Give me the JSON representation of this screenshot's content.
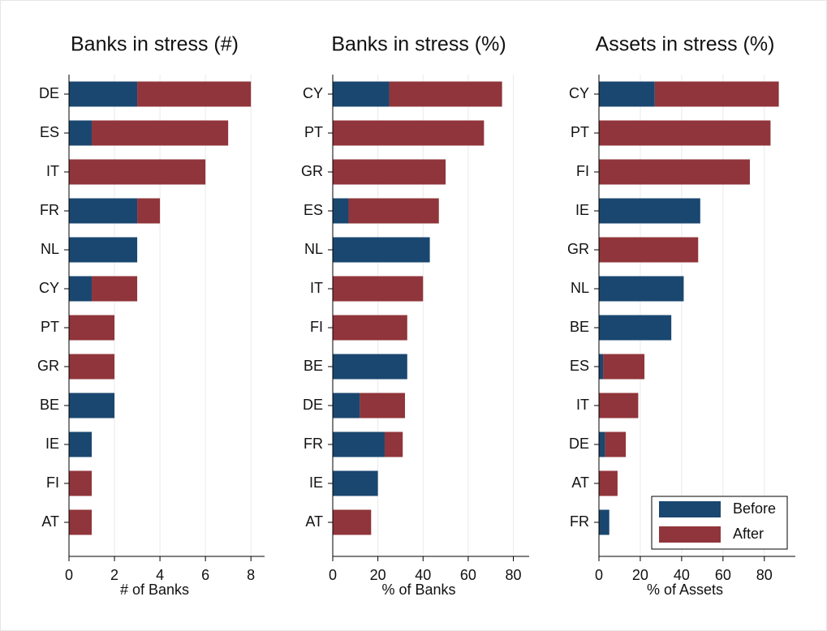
{
  "chart_data": [
    {
      "type": "bar",
      "orientation": "horizontal",
      "stacked": true,
      "title": "Banks in stress (#)",
      "xlabel": "# of Banks",
      "categories": [
        "DE",
        "ES",
        "IT",
        "FR",
        "NL",
        "CY",
        "PT",
        "GR",
        "BE",
        "IE",
        "FI",
        "AT"
      ],
      "series": [
        {
          "name": "Before",
          "color": "#1a476f",
          "values": [
            3,
            1,
            0,
            3,
            3,
            1,
            0,
            0,
            2,
            1,
            0,
            0
          ]
        },
        {
          "name": "After",
          "color": "#90353b",
          "values": [
            5,
            6,
            6,
            1,
            0,
            2,
            2,
            2,
            0,
            0,
            1,
            1
          ]
        }
      ],
      "xlim": [
        0,
        8.6
      ],
      "xticks": [
        0,
        2,
        4,
        6,
        8
      ],
      "grid": true
    },
    {
      "type": "bar",
      "orientation": "horizontal",
      "stacked": true,
      "title": "Banks in stress (%)",
      "xlabel": "% of Banks",
      "categories": [
        "CY",
        "PT",
        "GR",
        "ES",
        "NL",
        "IT",
        "FI",
        "BE",
        "DE",
        "FR",
        "IE",
        "AT"
      ],
      "series": [
        {
          "name": "Before",
          "color": "#1a476f",
          "values": [
            25,
            0,
            0,
            7,
            43,
            0,
            0,
            33,
            12,
            23,
            20,
            0
          ]
        },
        {
          "name": "After",
          "color": "#90353b",
          "values": [
            50,
            67,
            50,
            40,
            0,
            40,
            33,
            0,
            20,
            8,
            0,
            17
          ]
        }
      ],
      "xlim": [
        0,
        87
      ],
      "xticks": [
        0,
        20,
        40,
        60,
        80
      ],
      "grid": true
    },
    {
      "type": "bar",
      "orientation": "horizontal",
      "stacked": true,
      "title": "Assets in stress (%)",
      "xlabel": "% of Assets",
      "categories": [
        "CY",
        "PT",
        "FI",
        "IE",
        "GR",
        "NL",
        "BE",
        "ES",
        "IT",
        "DE",
        "AT",
        "FR"
      ],
      "series": [
        {
          "name": "Before",
          "color": "#1a476f",
          "values": [
            27,
            0,
            0,
            49,
            0,
            41,
            35,
            2,
            0,
            3,
            0,
            5
          ]
        },
        {
          "name": "After",
          "color": "#90353b",
          "values": [
            60,
            83,
            73,
            0,
            48,
            0,
            0,
            20,
            19,
            10,
            9,
            0
          ]
        }
      ],
      "xlim": [
        0,
        95
      ],
      "xticks": [
        0,
        20,
        40,
        60,
        80
      ],
      "grid": true,
      "legend": "lower right"
    }
  ]
}
